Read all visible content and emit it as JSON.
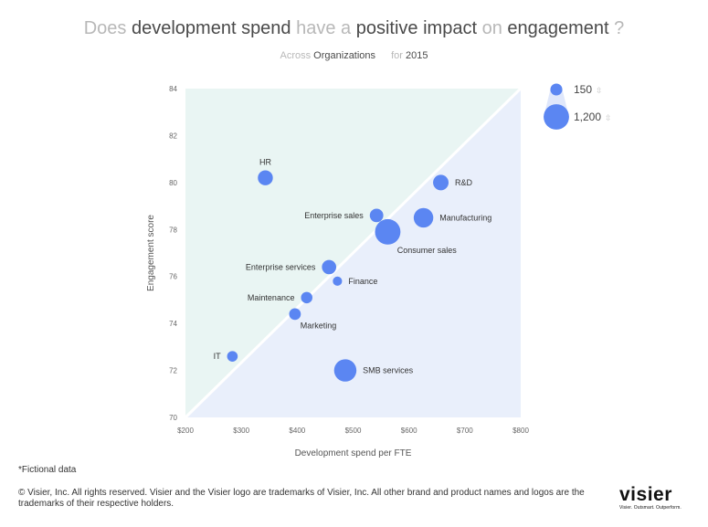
{
  "header": {
    "title_parts": [
      {
        "text": "Does ",
        "emphasis": false
      },
      {
        "text": "development spend",
        "emphasis": true
      },
      {
        "text": " have a ",
        "emphasis": false
      },
      {
        "text": "positive impact",
        "emphasis": true
      },
      {
        "text": " on ",
        "emphasis": false
      },
      {
        "text": "engagement",
        "emphasis": true
      },
      {
        "text": " ?",
        "emphasis": false
      }
    ],
    "subtitle": {
      "across": "Across",
      "organizations": "Organizations",
      "for_label": "for",
      "year": "2015"
    }
  },
  "legend": {
    "small_label": "150",
    "large_label": "1,200",
    "sort_icon": "sort-arrows-icon"
  },
  "chart_data": {
    "type": "scatter",
    "xlabel": "Development spend per FTE",
    "ylabel": "Engagement score",
    "xlim": [
      200,
      800
    ],
    "ylim": [
      70,
      84
    ],
    "x_ticks": [
      200,
      300,
      400,
      500,
      600,
      700,
      800
    ],
    "x_tick_labels": [
      "$200",
      "$300",
      "$400",
      "$500",
      "$600",
      "$700",
      "$800"
    ],
    "y_ticks": [
      70,
      72,
      74,
      76,
      78,
      80,
      82,
      84
    ],
    "y_tick_labels": [
      "70",
      "72",
      "74",
      "76",
      "78",
      "80",
      "82",
      "84"
    ],
    "size_legend": [
      150,
      1200
    ],
    "grid": false,
    "points": [
      {
        "label": "HR",
        "x": 343,
        "y": 80.2,
        "size": 300,
        "label_pos": "above"
      },
      {
        "label": "R&D",
        "x": 657,
        "y": 80.0,
        "size": 330,
        "label_pos": "right"
      },
      {
        "label": "Enterprise sales",
        "x": 542,
        "y": 78.6,
        "size": 220,
        "label_pos": "left"
      },
      {
        "label": "Manufacturing",
        "x": 626,
        "y": 78.5,
        "size": 620,
        "label_pos": "right"
      },
      {
        "label": "Consumer sales",
        "x": 562,
        "y": 77.9,
        "size": 1200,
        "label_pos": "below-right"
      },
      {
        "label": "Enterprise services",
        "x": 457,
        "y": 76.4,
        "size": 260,
        "label_pos": "left"
      },
      {
        "label": "Finance",
        "x": 472,
        "y": 75.8,
        "size": 60,
        "label_pos": "right"
      },
      {
        "label": "Maintenance",
        "x": 417,
        "y": 75.1,
        "size": 130,
        "label_pos": "left"
      },
      {
        "label": "Marketing",
        "x": 396,
        "y": 74.4,
        "size": 140,
        "label_pos": "below-right"
      },
      {
        "label": "IT",
        "x": 284,
        "y": 72.6,
        "size": 100,
        "label_pos": "left"
      },
      {
        "label": "SMB services",
        "x": 486,
        "y": 72.0,
        "size": 870,
        "label_pos": "right"
      }
    ],
    "colors": {
      "point": "#5b86f2",
      "upper_region": "#e9f5f3",
      "lower_region": "#e9effb",
      "diagonal": "#ffffff",
      "tick_text": "#666666",
      "axis_label": "#555555",
      "point_label": "#333333",
      "legend_bubble": "#5b86f2"
    }
  },
  "footer": {
    "note": "*Fictional data",
    "copyright": "© Visier, Inc. All rights reserved. Visier and the Visier logo are trademarks of Visier, Inc. All other brand and product names and logos are the trademarks of their respective holders.",
    "logo_text": "visier",
    "tagline": "Visier. Outsmart. Outperform."
  }
}
